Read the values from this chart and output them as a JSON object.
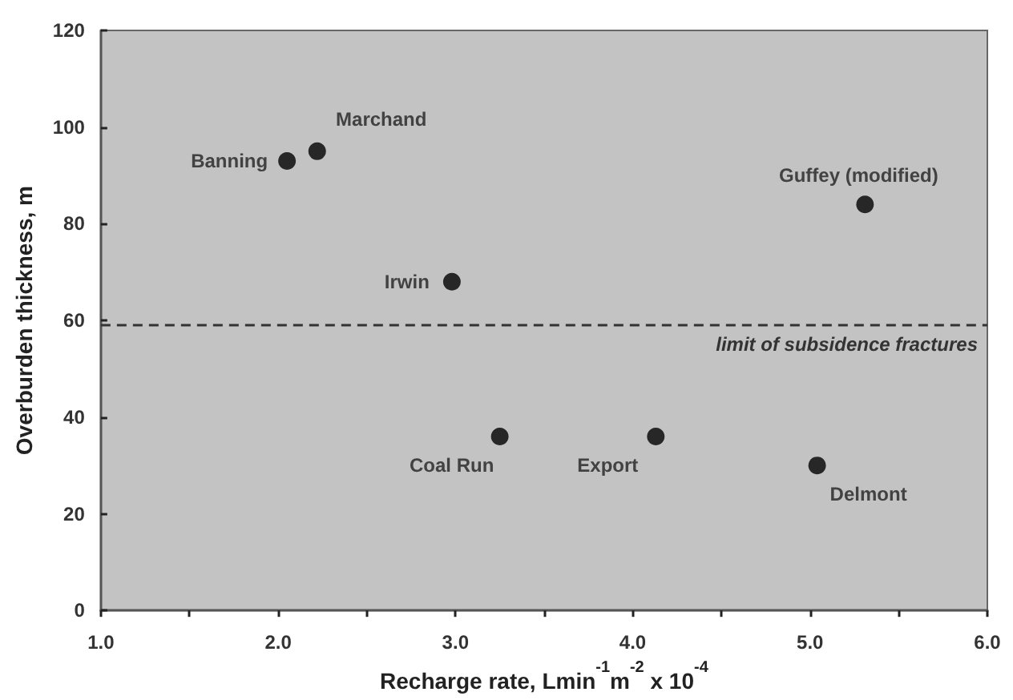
{
  "chart_data": {
    "type": "scatter",
    "xlabel": "Recharge rate, Lmin$^{-1}$m$^{-2}$ x 10$^{-4}$",
    "ylabel": "Overburden thickness, m",
    "x": [
      2.05,
      2.22,
      2.98,
      5.31,
      3.25,
      4.13,
      5.04
    ],
    "series": [
      {
        "color": "#000000",
        "values": [
          93,
          95,
          68,
          84,
          36,
          36,
          30
        ]
      }
    ],
    "marker": "circle",
    "xlim": [
      1,
      6
    ],
    "xticks": [
      {
        "value": 1,
        "label": "1.0"
      },
      {
        "value": 1.5,
        "label": null
      },
      {
        "value": 2,
        "label": "2.0"
      },
      {
        "value": 2.5,
        "label": null
      },
      {
        "value": 3,
        "label": "3.0"
      },
      {
        "value": 3.5,
        "label": null
      },
      {
        "value": 4,
        "label": "4.0"
      },
      {
        "value": 4.5,
        "label": null
      },
      {
        "value": 5,
        "label": "5.0"
      },
      {
        "value": 5.5,
        "label": null
      },
      {
        "value": 6,
        "label": "6.0"
      }
    ],
    "ylim": [
      0,
      120
    ],
    "yticks": [
      0,
      20,
      40,
      60,
      80,
      100,
      120
    ],
    "grid": false,
    "ref_lines": [
      {
        "axis": "y",
        "value": 59,
        "label": "limit of subsidence fractures",
        "line_style": "dashed",
        "color": "#333333"
      }
    ],
    "annotations": [
      {
        "text": "Banning",
        "x": 2.05,
        "y": 93
      },
      {
        "text": "Marchand",
        "x": 2.22,
        "y": 95
      },
      {
        "text": "Irwin",
        "x": 2.98,
        "y": 68
      },
      {
        "text": "Guffey (modified)",
        "x": 5.31,
        "y": 84
      },
      {
        "text": "Coal Run",
        "x": 3.25,
        "y": 36
      },
      {
        "text": "Export",
        "x": 4.13,
        "y": 36
      },
      {
        "text": "Delmont",
        "x": 5.04,
        "y": 30
      }
    ]
  }
}
